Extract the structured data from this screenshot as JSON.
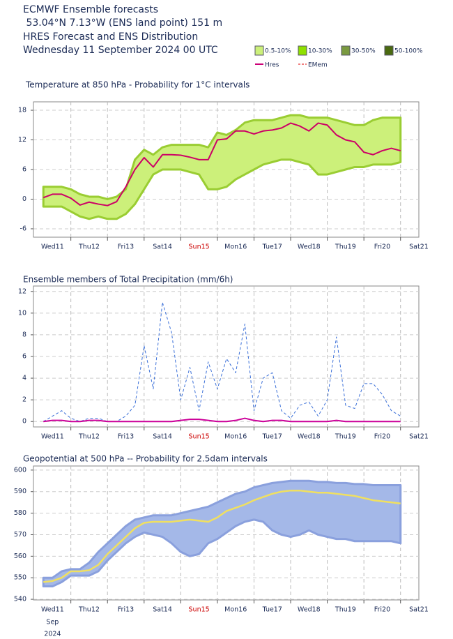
{
  "header": {
    "lines": [
      "ECMWF Ensemble forecasts",
      " 53.04°N 7.13°W (ENS land point) 151 m",
      "HRES Forecast and ENS Distribution",
      "Wednesday 11 September 2024 00 UTC"
    ]
  },
  "legend": {
    "boxes": [
      {
        "label": "0.5-10%",
        "color": "#ccf07a"
      },
      {
        "label": "10-30%",
        "color": "#8fe000"
      },
      {
        "label": "30-50%",
        "color": "#7a9a40"
      },
      {
        "label": "50-100%",
        "color": "#4a6a10"
      }
    ],
    "lines": [
      {
        "label": "Hres",
        "color": "#cc0077",
        "dashed": false
      },
      {
        "label": "EMem",
        "color": "#f08080",
        "dashed": true
      }
    ]
  },
  "chart_data": [
    {
      "type": "line",
      "title": "Temperature at 850 hPa - Probability for 1°C intervals",
      "x": [
        0,
        6,
        12,
        18,
        24,
        30,
        36,
        42,
        48,
        54,
        60,
        66,
        72,
        78,
        84,
        90,
        96,
        102,
        108,
        114,
        120,
        126,
        132,
        138,
        144,
        150,
        156,
        162,
        168,
        174,
        180,
        186,
        192,
        198,
        204,
        210,
        216,
        222,
        228,
        234
      ],
      "xlim": [
        -6.5,
        246
      ],
      "xticks": [
        {
          "value": 6,
          "label": "Wed11"
        },
        {
          "value": 30,
          "label": "Thu12"
        },
        {
          "value": 54,
          "label": "Fri13"
        },
        {
          "value": 78,
          "label": "Sat14"
        },
        {
          "value": 102,
          "label": "Sun15",
          "color": "#cc0000"
        },
        {
          "value": 126,
          "label": "Mon16"
        },
        {
          "value": 150,
          "label": "Tue17"
        },
        {
          "value": 174,
          "label": "Wed18"
        },
        {
          "value": 198,
          "label": "Thu19"
        },
        {
          "value": 222,
          "label": "Fri20"
        },
        {
          "value": 246,
          "label": "Sat21"
        }
      ],
      "xgrid": [
        18,
        42,
        66,
        90,
        114,
        138,
        162,
        186,
        210,
        234
      ],
      "ylim": [
        -7.7,
        19.7
      ],
      "yticks": [
        -6,
        0,
        6,
        12,
        18
      ],
      "grid": true,
      "bands": [
        {
          "color": "#ccf07a",
          "edge": "#9acd32",
          "upper": [
            2.5,
            2.5,
            2.5,
            2,
            1,
            0.5,
            0.5,
            0,
            0.5,
            2,
            8,
            10,
            9,
            10.5,
            11,
            11,
            11,
            11,
            10.5,
            13.5,
            13,
            14,
            15.5,
            16,
            16,
            16,
            16.5,
            17,
            17,
            16.5,
            16.5,
            16.5,
            16,
            15.5,
            15,
            15,
            16,
            16.5,
            16.5,
            16.5
          ],
          "lower": [
            -1.5,
            -1.5,
            -1.5,
            -2.5,
            -3.5,
            -4,
            -3.5,
            -4,
            -4,
            -3,
            -1,
            2,
            5,
            6,
            6,
            6,
            5.5,
            5,
            2,
            2,
            2.5,
            4,
            5,
            6,
            7,
            7.5,
            8,
            8,
            7.5,
            7,
            5,
            5,
            5.5,
            6,
            6.5,
            6.5,
            7,
            7,
            7,
            7.5
          ]
        }
      ],
      "series": [
        {
          "name": "Hres",
          "color": "#cc0066",
          "width": 2,
          "dashed": false,
          "values": [
            0.3,
            1,
            1,
            0.2,
            -1.2,
            -0.6,
            -1,
            -1.3,
            -0.5,
            2.5,
            6,
            8.4,
            6.5,
            9,
            9,
            8.9,
            8.5,
            8,
            8,
            12,
            12.2,
            13.8,
            13.8,
            13.2,
            13.8,
            14,
            14.4,
            15.4,
            14.8,
            13.8,
            15.4,
            15,
            13,
            12,
            11.6,
            9.5,
            9,
            9.8,
            10.3,
            9.8
          ]
        }
      ]
    },
    {
      "type": "line",
      "title": "Ensemble members of Total Precipitation (mm/6h)",
      "x": [
        0,
        6,
        12,
        18,
        24,
        30,
        36,
        42,
        48,
        54,
        60,
        66,
        72,
        78,
        84,
        90,
        96,
        102,
        108,
        114,
        120,
        126,
        132,
        138,
        144,
        150,
        156,
        162,
        168,
        174,
        180,
        186,
        192,
        198,
        204,
        210,
        216,
        222,
        228,
        234
      ],
      "xlim": [
        -6.5,
        246
      ],
      "xticks": [
        {
          "value": 6,
          "label": "Wed11"
        },
        {
          "value": 30,
          "label": "Thu12"
        },
        {
          "value": 54,
          "label": "Fri13"
        },
        {
          "value": 78,
          "label": "Sat14"
        },
        {
          "value": 102,
          "label": "Sun15",
          "color": "#cc0000"
        },
        {
          "value": 126,
          "label": "Mon16"
        },
        {
          "value": 150,
          "label": "Tue17"
        },
        {
          "value": 174,
          "label": "Wed18"
        },
        {
          "value": 198,
          "label": "Thu19"
        },
        {
          "value": 222,
          "label": "Fri20"
        },
        {
          "value": 246,
          "label": "Sat21"
        }
      ],
      "xgrid": [
        18,
        42,
        66,
        90,
        114,
        138,
        162,
        186,
        210,
        234
      ],
      "ylim": [
        -0.5,
        12.5
      ],
      "yticks": [
        0,
        2,
        4,
        6,
        8,
        10,
        12
      ],
      "grid": true,
      "bands": [],
      "series": [
        {
          "name": "EMem",
          "color": "#3a6fd8",
          "width": 1,
          "dashed": true,
          "values": [
            0,
            0.5,
            1,
            0.3,
            0,
            0.3,
            0.3,
            0,
            0,
            0.5,
            1.5,
            7,
            3,
            11,
            8.2,
            2,
            5,
            1,
            5.5,
            3,
            5.8,
            4.5,
            9,
            1,
            4,
            4.5,
            1,
            0.3,
            1.5,
            1.8,
            0.5,
            2,
            7.8,
            1.5,
            1.2,
            3.5,
            3.5,
            2.5,
            1,
            0.5
          ]
        },
        {
          "name": "Hres",
          "color": "#cc0099",
          "width": 2,
          "dashed": false,
          "values": [
            0,
            0.1,
            0.1,
            0,
            0,
            0.1,
            0.1,
            0,
            0,
            0,
            0,
            0,
            0,
            0,
            0,
            0.1,
            0.2,
            0.2,
            0.1,
            0,
            0,
            0.1,
            0.3,
            0.1,
            0,
            0.1,
            0.1,
            0,
            0,
            0,
            0,
            0,
            0.1,
            0,
            0,
            0,
            0,
            0,
            0,
            0
          ]
        }
      ]
    },
    {
      "type": "line",
      "title": "Geopotential at 500 hPa -- Probability for 2.5dam intervals",
      "x": [
        0,
        6,
        12,
        18,
        24,
        30,
        36,
        42,
        48,
        54,
        60,
        66,
        72,
        78,
        84,
        90,
        96,
        102,
        108,
        114,
        120,
        126,
        132,
        138,
        144,
        150,
        156,
        162,
        168,
        174,
        180,
        186,
        192,
        198,
        204,
        210,
        216,
        222,
        228,
        234
      ],
      "xlim": [
        -6.5,
        246
      ],
      "xticks": [
        {
          "value": 6,
          "label": "Wed11"
        },
        {
          "value": 30,
          "label": "Thu12"
        },
        {
          "value": 54,
          "label": "Fri13"
        },
        {
          "value": 78,
          "label": "Sat14"
        },
        {
          "value": 102,
          "label": "Sun15",
          "color": "#cc0000"
        },
        {
          "value": 126,
          "label": "Mon16"
        },
        {
          "value": 150,
          "label": "Tue17"
        },
        {
          "value": 174,
          "label": "Wed18"
        },
        {
          "value": 198,
          "label": "Thu19"
        },
        {
          "value": 222,
          "label": "Fri20"
        },
        {
          "value": 246,
          "label": "Sat21"
        }
      ],
      "xgrid": [
        18,
        42,
        66,
        90,
        114,
        138,
        162,
        186,
        210,
        234
      ],
      "x_sublabels": [
        "Sep",
        "2024"
      ],
      "ylim": [
        539.7,
        601.9
      ],
      "yticks": [
        540,
        550,
        560,
        570,
        580,
        590,
        600
      ],
      "grid": true,
      "bands": [
        {
          "color": "#a4b8e8",
          "edge": "#8aa0dd",
          "upper": [
            550,
            550,
            553,
            554,
            554,
            557,
            562,
            566,
            570,
            574,
            577,
            578,
            579,
            579,
            579,
            580,
            581,
            582,
            583,
            585,
            587,
            589,
            590,
            592,
            593,
            594,
            594.5,
            595,
            595,
            595,
            594.5,
            594.5,
            594,
            594,
            593.5,
            593.5,
            593,
            593,
            593,
            593
          ],
          "lower": [
            546,
            546,
            548,
            551,
            551,
            551,
            553,
            558,
            562,
            566,
            569,
            571,
            570,
            569,
            566,
            562,
            560,
            561,
            566,
            568,
            571,
            574,
            576,
            577,
            576,
            572,
            570,
            569,
            570,
            572,
            570,
            569,
            568,
            568,
            567,
            567,
            567,
            567,
            567,
            566
          ]
        }
      ],
      "series": [
        {
          "name": "Hres",
          "color": "#f0e060",
          "width": 2.5,
          "dashed": false,
          "values": [
            548,
            548.5,
            550,
            553,
            553,
            553.5,
            556,
            561,
            565,
            569,
            573,
            575.5,
            576,
            576,
            576,
            576.5,
            577,
            576.5,
            576,
            578,
            581,
            582.5,
            584,
            586,
            587.5,
            589,
            590,
            590.5,
            590.5,
            590,
            589.5,
            589.5,
            589,
            588.5,
            588,
            587,
            586,
            585.5,
            585,
            584.5
          ]
        }
      ]
    }
  ]
}
